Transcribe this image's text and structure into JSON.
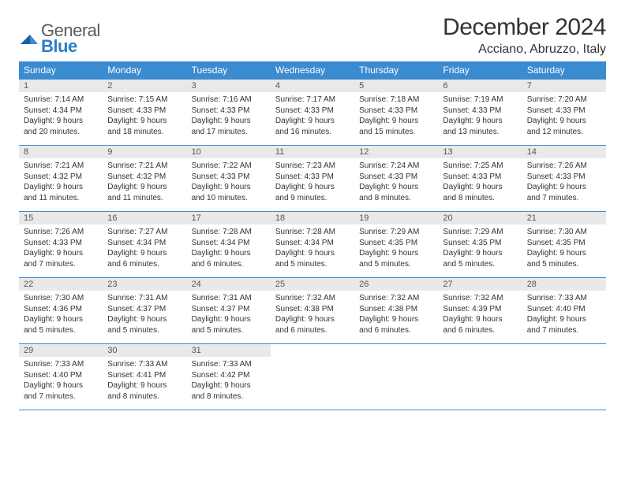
{
  "logo": {
    "word1": "General",
    "word2": "Blue"
  },
  "title": "December 2024",
  "location": "Acciano, Abruzzo, Italy",
  "colors": {
    "header_bg": "#3b8bd1",
    "header_text": "#ffffff",
    "row_border": "#3b8bd1",
    "daynum_bg": "#e9e9e9",
    "text": "#333333"
  },
  "weekdays": [
    "Sunday",
    "Monday",
    "Tuesday",
    "Wednesday",
    "Thursday",
    "Friday",
    "Saturday"
  ],
  "weeks": [
    [
      {
        "n": "1",
        "sr": "Sunrise: 7:14 AM",
        "ss": "Sunset: 4:34 PM",
        "d1": "Daylight: 9 hours",
        "d2": "and 20 minutes."
      },
      {
        "n": "2",
        "sr": "Sunrise: 7:15 AM",
        "ss": "Sunset: 4:33 PM",
        "d1": "Daylight: 9 hours",
        "d2": "and 18 minutes."
      },
      {
        "n": "3",
        "sr": "Sunrise: 7:16 AM",
        "ss": "Sunset: 4:33 PM",
        "d1": "Daylight: 9 hours",
        "d2": "and 17 minutes."
      },
      {
        "n": "4",
        "sr": "Sunrise: 7:17 AM",
        "ss": "Sunset: 4:33 PM",
        "d1": "Daylight: 9 hours",
        "d2": "and 16 minutes."
      },
      {
        "n": "5",
        "sr": "Sunrise: 7:18 AM",
        "ss": "Sunset: 4:33 PM",
        "d1": "Daylight: 9 hours",
        "d2": "and 15 minutes."
      },
      {
        "n": "6",
        "sr": "Sunrise: 7:19 AM",
        "ss": "Sunset: 4:33 PM",
        "d1": "Daylight: 9 hours",
        "d2": "and 13 minutes."
      },
      {
        "n": "7",
        "sr": "Sunrise: 7:20 AM",
        "ss": "Sunset: 4:33 PM",
        "d1": "Daylight: 9 hours",
        "d2": "and 12 minutes."
      }
    ],
    [
      {
        "n": "8",
        "sr": "Sunrise: 7:21 AM",
        "ss": "Sunset: 4:32 PM",
        "d1": "Daylight: 9 hours",
        "d2": "and 11 minutes."
      },
      {
        "n": "9",
        "sr": "Sunrise: 7:21 AM",
        "ss": "Sunset: 4:32 PM",
        "d1": "Daylight: 9 hours",
        "d2": "and 11 minutes."
      },
      {
        "n": "10",
        "sr": "Sunrise: 7:22 AM",
        "ss": "Sunset: 4:33 PM",
        "d1": "Daylight: 9 hours",
        "d2": "and 10 minutes."
      },
      {
        "n": "11",
        "sr": "Sunrise: 7:23 AM",
        "ss": "Sunset: 4:33 PM",
        "d1": "Daylight: 9 hours",
        "d2": "and 9 minutes."
      },
      {
        "n": "12",
        "sr": "Sunrise: 7:24 AM",
        "ss": "Sunset: 4:33 PM",
        "d1": "Daylight: 9 hours",
        "d2": "and 8 minutes."
      },
      {
        "n": "13",
        "sr": "Sunrise: 7:25 AM",
        "ss": "Sunset: 4:33 PM",
        "d1": "Daylight: 9 hours",
        "d2": "and 8 minutes."
      },
      {
        "n": "14",
        "sr": "Sunrise: 7:26 AM",
        "ss": "Sunset: 4:33 PM",
        "d1": "Daylight: 9 hours",
        "d2": "and 7 minutes."
      }
    ],
    [
      {
        "n": "15",
        "sr": "Sunrise: 7:26 AM",
        "ss": "Sunset: 4:33 PM",
        "d1": "Daylight: 9 hours",
        "d2": "and 7 minutes."
      },
      {
        "n": "16",
        "sr": "Sunrise: 7:27 AM",
        "ss": "Sunset: 4:34 PM",
        "d1": "Daylight: 9 hours",
        "d2": "and 6 minutes."
      },
      {
        "n": "17",
        "sr": "Sunrise: 7:28 AM",
        "ss": "Sunset: 4:34 PM",
        "d1": "Daylight: 9 hours",
        "d2": "and 6 minutes."
      },
      {
        "n": "18",
        "sr": "Sunrise: 7:28 AM",
        "ss": "Sunset: 4:34 PM",
        "d1": "Daylight: 9 hours",
        "d2": "and 5 minutes."
      },
      {
        "n": "19",
        "sr": "Sunrise: 7:29 AM",
        "ss": "Sunset: 4:35 PM",
        "d1": "Daylight: 9 hours",
        "d2": "and 5 minutes."
      },
      {
        "n": "20",
        "sr": "Sunrise: 7:29 AM",
        "ss": "Sunset: 4:35 PM",
        "d1": "Daylight: 9 hours",
        "d2": "and 5 minutes."
      },
      {
        "n": "21",
        "sr": "Sunrise: 7:30 AM",
        "ss": "Sunset: 4:35 PM",
        "d1": "Daylight: 9 hours",
        "d2": "and 5 minutes."
      }
    ],
    [
      {
        "n": "22",
        "sr": "Sunrise: 7:30 AM",
        "ss": "Sunset: 4:36 PM",
        "d1": "Daylight: 9 hours",
        "d2": "and 5 minutes."
      },
      {
        "n": "23",
        "sr": "Sunrise: 7:31 AM",
        "ss": "Sunset: 4:37 PM",
        "d1": "Daylight: 9 hours",
        "d2": "and 5 minutes."
      },
      {
        "n": "24",
        "sr": "Sunrise: 7:31 AM",
        "ss": "Sunset: 4:37 PM",
        "d1": "Daylight: 9 hours",
        "d2": "and 5 minutes."
      },
      {
        "n": "25",
        "sr": "Sunrise: 7:32 AM",
        "ss": "Sunset: 4:38 PM",
        "d1": "Daylight: 9 hours",
        "d2": "and 6 minutes."
      },
      {
        "n": "26",
        "sr": "Sunrise: 7:32 AM",
        "ss": "Sunset: 4:38 PM",
        "d1": "Daylight: 9 hours",
        "d2": "and 6 minutes."
      },
      {
        "n": "27",
        "sr": "Sunrise: 7:32 AM",
        "ss": "Sunset: 4:39 PM",
        "d1": "Daylight: 9 hours",
        "d2": "and 6 minutes."
      },
      {
        "n": "28",
        "sr": "Sunrise: 7:33 AM",
        "ss": "Sunset: 4:40 PM",
        "d1": "Daylight: 9 hours",
        "d2": "and 7 minutes."
      }
    ],
    [
      {
        "n": "29",
        "sr": "Sunrise: 7:33 AM",
        "ss": "Sunset: 4:40 PM",
        "d1": "Daylight: 9 hours",
        "d2": "and 7 minutes."
      },
      {
        "n": "30",
        "sr": "Sunrise: 7:33 AM",
        "ss": "Sunset: 4:41 PM",
        "d1": "Daylight: 9 hours",
        "d2": "and 8 minutes."
      },
      {
        "n": "31",
        "sr": "Sunrise: 7:33 AM",
        "ss": "Sunset: 4:42 PM",
        "d1": "Daylight: 9 hours",
        "d2": "and 8 minutes."
      },
      null,
      null,
      null,
      null
    ]
  ]
}
